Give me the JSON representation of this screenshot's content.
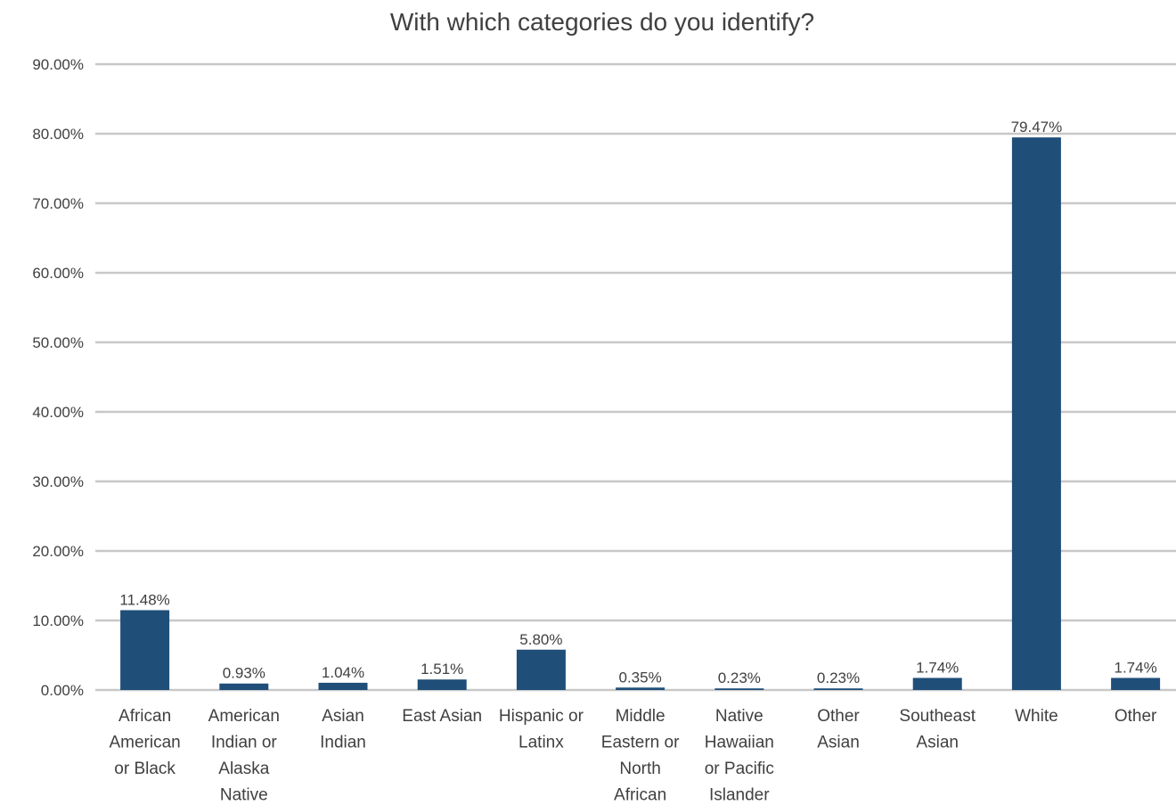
{
  "chart_data": {
    "type": "bar",
    "title": "With which categories do you identify?",
    "xlabel": "",
    "ylabel": "",
    "ylim": [
      0,
      90
    ],
    "yticks": [
      "0.00%",
      "10.00%",
      "20.00%",
      "30.00%",
      "40.00%",
      "50.00%",
      "60.00%",
      "70.00%",
      "80.00%",
      "90.00%"
    ],
    "grid": true,
    "legend": "none",
    "bar_color": "#1f4e79",
    "categories": [
      "African American or Black",
      "American Indian or Alaska Native",
      "Asian Indian",
      "East Asian",
      "Hispanic or Latinx",
      "Middle Eastern or North African",
      "Native Hawaiian or Pacific Islander",
      "Other Asian",
      "Southeast Asian",
      "White",
      "Other"
    ],
    "category_lines": [
      [
        "African",
        "American",
        "or Black"
      ],
      [
        "American",
        "Indian or",
        "Alaska",
        "Native"
      ],
      [
        "Asian",
        "Indian"
      ],
      [
        "East Asian"
      ],
      [
        "Hispanic or",
        "Latinx"
      ],
      [
        "Middle",
        "Eastern or",
        "North",
        "African"
      ],
      [
        "Native",
        "Hawaiian",
        "or Pacific",
        "Islander"
      ],
      [
        "Other",
        "Asian"
      ],
      [
        "Southeast",
        "Asian"
      ],
      [
        "White"
      ],
      [
        "Other"
      ]
    ],
    "values": [
      11.48,
      0.93,
      1.04,
      1.51,
      5.8,
      0.35,
      0.23,
      0.23,
      1.74,
      79.47,
      1.74
    ],
    "data_labels": [
      "11.48%",
      "0.93%",
      "1.04%",
      "1.51%",
      "5.80%",
      "0.35%",
      "0.23%",
      "0.23%",
      "1.74%",
      "79.47%",
      "1.74%"
    ]
  }
}
